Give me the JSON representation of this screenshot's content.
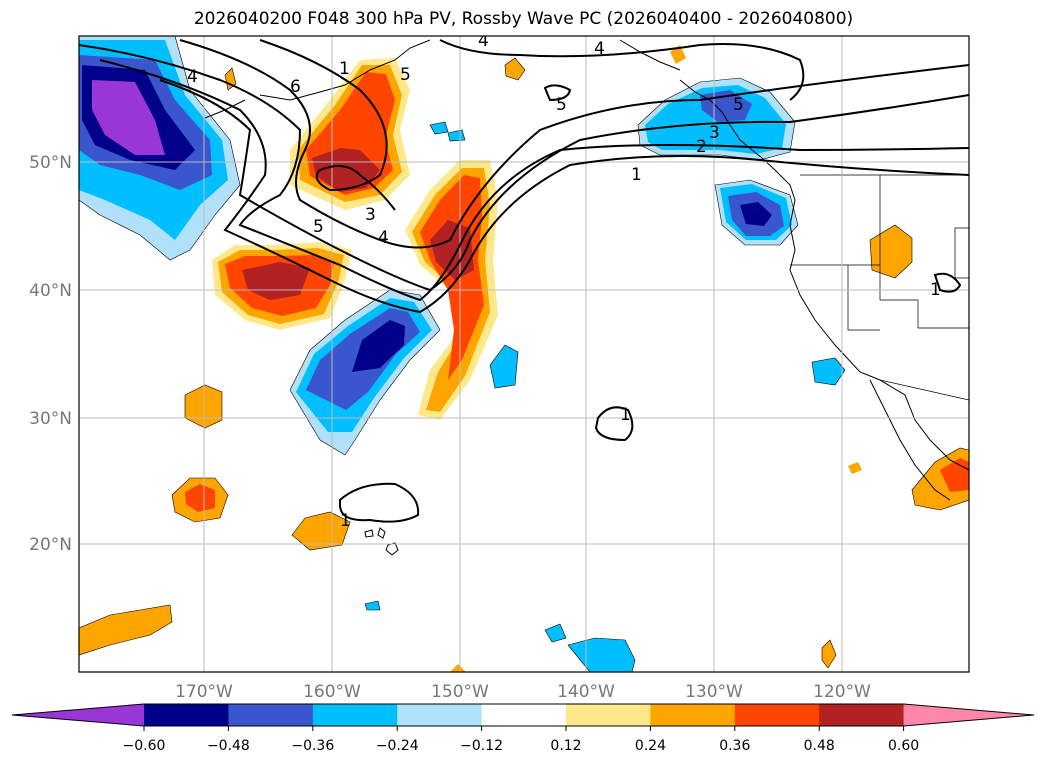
{
  "title": "2026040200 F048 300 hPa PV, Rossby Wave PC (2026040400 - 2026040800)",
  "map": {
    "lon_labels": [
      "170°W",
      "160°W",
      "150°W",
      "140°W",
      "130°W",
      "120°W"
    ],
    "lat_labels": [
      "50°N",
      "40°N",
      "30°N",
      "20°N"
    ],
    "contour_labels": [
      "4",
      "6",
      "5",
      "4",
      "5",
      "5",
      "1",
      "3",
      "2",
      "1",
      "3",
      "5",
      "4",
      "1",
      "1",
      "1",
      "4"
    ]
  },
  "colorbar": {
    "colors": [
      "#9a36d6",
      "#00008b",
      "#3a56cc",
      "#00bfff",
      "#b0e0fa",
      "#ffffff",
      "#ffe88a",
      "#ffa500",
      "#ff4500",
      "#b22222",
      "#ff88aa"
    ],
    "tick_labels": [
      "−0.60",
      "−0.48",
      "−0.36",
      "−0.24",
      "−0.12",
      "0.12",
      "0.24",
      "0.36",
      "0.48",
      "0.60"
    ]
  }
}
